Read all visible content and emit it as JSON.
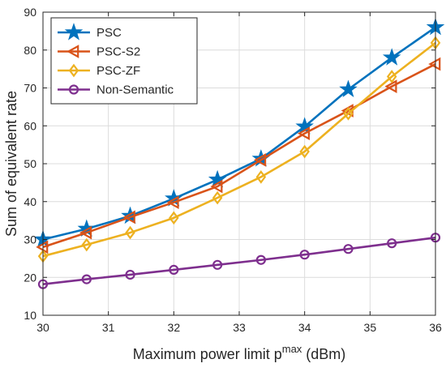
{
  "chart_data": {
    "type": "line",
    "title": "",
    "xlabel_main": "Maximum power limit p",
    "xlabel_sup": "max",
    "xlabel_unit": " (dBm)",
    "ylabel": "Sum of equivalent rate",
    "xlim": [
      30,
      36
    ],
    "ylim": [
      10,
      90
    ],
    "xticks": [
      30,
      31,
      32,
      33,
      34,
      35,
      36
    ],
    "yticks": [
      10,
      20,
      30,
      40,
      50,
      60,
      70,
      80,
      90
    ],
    "grid": true,
    "legend_position": "top-left",
    "x": [
      30,
      30.667,
      31.333,
      32,
      32.667,
      33.333,
      34,
      34.667,
      35.333,
      36
    ],
    "series": [
      {
        "name": "PSC",
        "color": "#0072BD",
        "marker": "star",
        "values": [
          30.0,
          32.8,
          36.2,
          40.8,
          45.8,
          51.3,
          59.8,
          69.6,
          78.0,
          86.0
        ]
      },
      {
        "name": "PSC-S2",
        "color": "#D95319",
        "marker": "triangle-left",
        "values": [
          28.0,
          31.8,
          35.9,
          39.8,
          44.0,
          51.0,
          58.0,
          64.0,
          70.4,
          76.3
        ]
      },
      {
        "name": "PSC-ZF",
        "color": "#EDB120",
        "marker": "diamond",
        "values": [
          25.6,
          28.6,
          31.8,
          35.7,
          41.0,
          46.5,
          53.2,
          63.2,
          73.0,
          81.9
        ]
      },
      {
        "name": "Non-Semantic",
        "color": "#7E2F8E",
        "marker": "circle",
        "values": [
          18.2,
          19.5,
          20.7,
          22.0,
          23.3,
          24.6,
          26.0,
          27.5,
          29.0,
          30.5
        ]
      }
    ]
  }
}
